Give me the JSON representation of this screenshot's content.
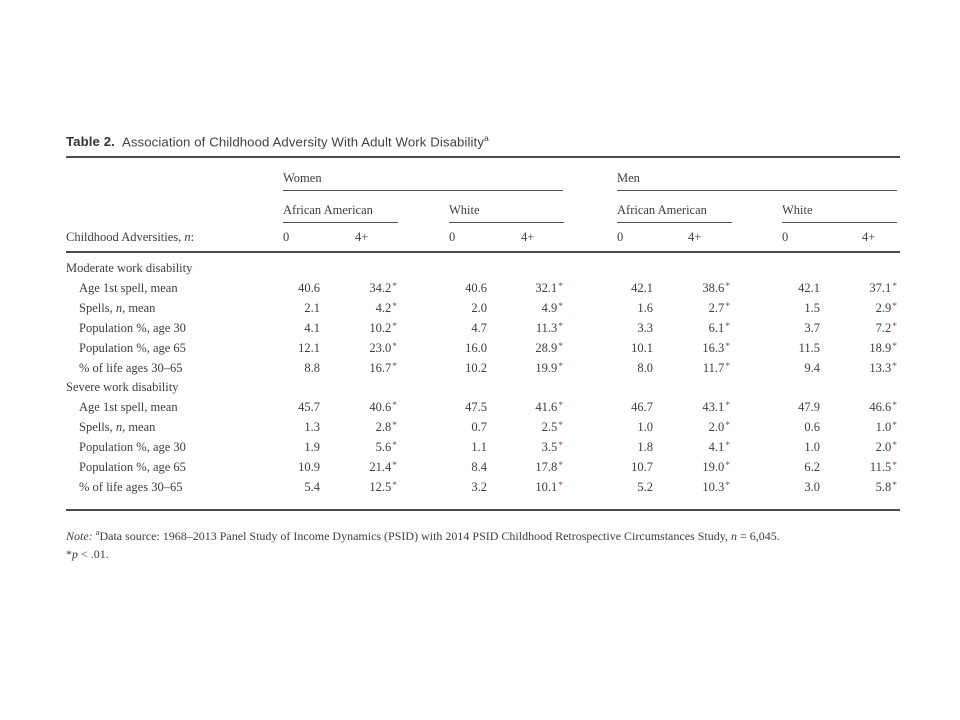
{
  "colors": {
    "text": "#3d3d46",
    "rule": "#4c4c4c",
    "asterisk": "#7a4650",
    "background": "#ffffff"
  },
  "table": {
    "title": {
      "label": "Table 2.",
      "text": "Association of Childhood Adversity With Adult Work Disability",
      "superscript": "a"
    },
    "group_headers": [
      {
        "label": "Women"
      },
      {
        "label": "Men"
      }
    ],
    "subgroup_headers": [
      {
        "label": "African American"
      },
      {
        "label": "White"
      },
      {
        "label": "African American"
      },
      {
        "label": "White"
      }
    ],
    "stub_label_parts": [
      "Childhood Adversities, ",
      {
        "i": "n"
      },
      ":"
    ],
    "value_headers": [
      "0",
      "4+",
      "0",
      "4+",
      "0",
      "4+",
      "0",
      "4+"
    ],
    "sections": [
      {
        "label": "Moderate work disability",
        "rows": [
          {
            "label": "Age 1st spell, mean",
            "values": [
              "40.6",
              "34.2*",
              "40.6",
              "32.1*",
              "42.1",
              "38.6*",
              "42.1",
              "37.1*"
            ]
          },
          {
            "label": [
              "Spells, ",
              {
                "i": "n"
              },
              ", mean"
            ],
            "values": [
              "2.1",
              "4.2*",
              "2.0",
              "4.9*",
              "1.6",
              "2.7*",
              "1.5",
              "2.9*"
            ]
          },
          {
            "label": "Population %, age 30",
            "values": [
              "4.1",
              "10.2*",
              "4.7",
              "11.3*",
              "3.3",
              "6.1*",
              "3.7",
              "7.2*"
            ]
          },
          {
            "label": "Population %, age 65",
            "values": [
              "12.1",
              "23.0*",
              "16.0",
              "28.9*",
              "10.1",
              "16.3*",
              "11.5",
              "18.9*"
            ]
          },
          {
            "label": "% of life ages 30–65",
            "values": [
              "8.8",
              "16.7*",
              "10.2",
              "19.9*",
              "8.0",
              "11.7*",
              "9.4",
              "13.3*"
            ]
          }
        ]
      },
      {
        "label": "Severe work disability",
        "rows": [
          {
            "label": "Age 1st spell, mean",
            "values": [
              "45.7",
              "40.6*",
              "47.5",
              "41.6*",
              "46.7",
              "43.1*",
              "47.9",
              "46.6*"
            ]
          },
          {
            "label": [
              "Spells, ",
              {
                "i": "n"
              },
              ", mean"
            ],
            "values": [
              "1.3",
              "2.8*",
              "0.7",
              "2.5*",
              "1.0",
              "2.0*",
              "0.6",
              "1.0*"
            ]
          },
          {
            "label": "Population %, age 30",
            "values": [
              "1.9",
              "5.6*",
              "1.1",
              "3.5*",
              "1.8",
              "4.1*",
              "1.0",
              "2.0*"
            ]
          },
          {
            "label": "Population %, age 65",
            "values": [
              "10.9",
              "21.4*",
              "8.4",
              "17.8*",
              "10.7",
              "19.0*",
              "6.2",
              "11.5*"
            ]
          },
          {
            "label": "% of life ages 30–65",
            "values": [
              "5.4",
              "12.5*",
              "3.2",
              "10.1*",
              "5.2",
              "10.3*",
              "3.0",
              "5.8*"
            ]
          }
        ]
      }
    ],
    "notes": {
      "line1_parts": [
        {
          "i": "Note:"
        },
        " ",
        {
          "sup": "a"
        },
        "Data source: 1968–2013 Panel Study of Income Dynamics (PSID) with 2014 PSID Childhood Retrospective Circumstances Study, ",
        {
          "i": "n"
        },
        " = 6,045."
      ],
      "line2_parts": [
        "*",
        {
          "i": "p"
        },
        " < .01."
      ]
    }
  }
}
